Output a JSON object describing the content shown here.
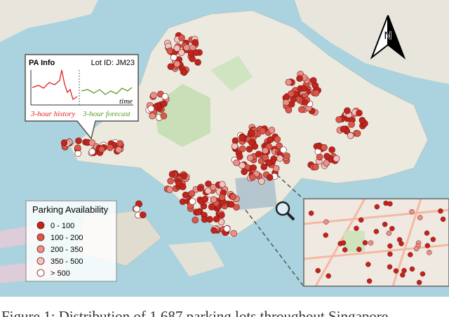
{
  "info_box": {
    "title": "PA Info",
    "lot_id": "Lot ID: JM23",
    "axis_label": "time",
    "history_label": "3-hour history",
    "forecast_label": "3-hour forecast"
  },
  "legend": {
    "title": "Parking Availability",
    "items": [
      {
        "label": "0 - 100",
        "color": "#c0241c"
      },
      {
        "label": "100 - 200",
        "color": "#d9584c"
      },
      {
        "label": "200 - 350",
        "color": "#e8908a"
      },
      {
        "label": "350 - 500",
        "color": "#f2c4c0"
      },
      {
        "label": "> 500",
        "color": "#ffffff"
      }
    ]
  },
  "caption": "Figure 1: Distribution of 1,687 parking lots throughout Singapore"
}
